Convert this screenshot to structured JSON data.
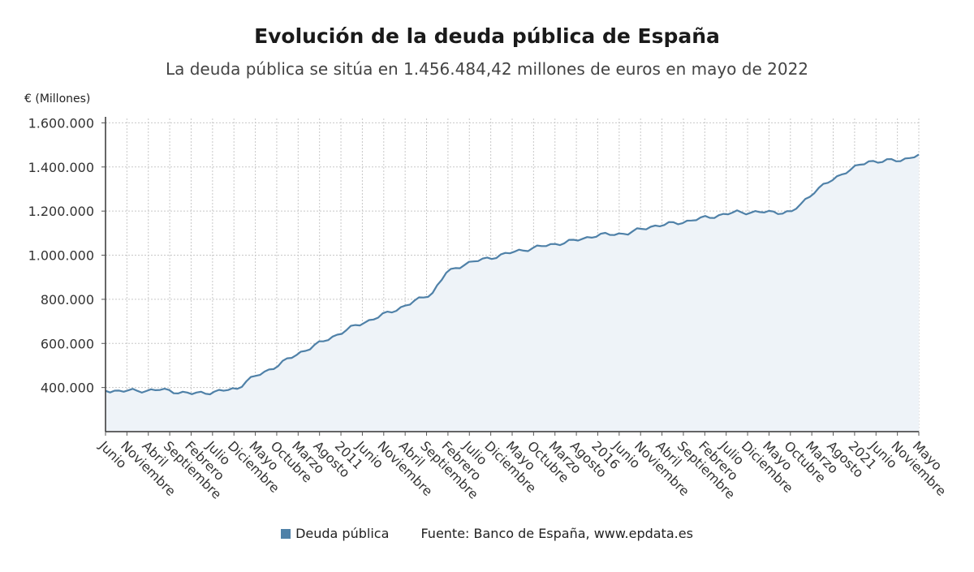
{
  "chart_data": {
    "type": "area",
    "title": "Evolución de la deuda pública de España",
    "subtitle": "La deuda pública se sitúa en 1.456.484,42 millones de euros en mayo de 2022",
    "ylabel": "€ (Millones)",
    "ylim": [
      200000,
      1620000
    ],
    "yticks": [
      400000,
      600000,
      800000,
      1000000,
      1200000,
      1400000,
      1600000
    ],
    "ytick_labels": [
      "400.000",
      "600.000",
      "800.000",
      "1.000.000",
      "1.200.000",
      "1.400.000",
      "1.600.000"
    ],
    "x_start": "2007-06",
    "x_end": "2022-05",
    "xtick_labels": [
      "Junio",
      "Noviembre",
      "Abril",
      "Septiembre",
      "Febrero",
      "Julio",
      "Diciembre",
      "Mayo",
      "Octubre",
      "Marzo",
      "Agosto",
      "2011",
      "Junio",
      "Noviembre",
      "Abril",
      "Septiembre",
      "Febrero",
      "Julio",
      "Diciembre",
      "Mayo",
      "Octubre",
      "Marzo",
      "Agosto",
      "2016",
      "Junio",
      "Noviembre",
      "Abril",
      "Septiembre",
      "Febrero",
      "Julio",
      "Diciembre",
      "Mayo",
      "Octubre",
      "Marzo",
      "Agosto",
      "2021",
      "Junio",
      "Noviembre",
      "Mayo"
    ],
    "grid": true,
    "legend_position": "bottom",
    "series": [
      {
        "name": "Deuda pública",
        "color": "#4f81a8",
        "fill": "#eef3f8",
        "anchors": [
          [
            "2007-06",
            385000
          ],
          [
            "2008-01",
            385000
          ],
          [
            "2008-06",
            390000
          ],
          [
            "2009-01",
            372000
          ],
          [
            "2009-06",
            380000
          ],
          [
            "2009-11",
            395000
          ],
          [
            "2010-01",
            430000
          ],
          [
            "2010-06",
            480000
          ],
          [
            "2011-01",
            560000
          ],
          [
            "2011-06",
            610000
          ],
          [
            "2012-01",
            680000
          ],
          [
            "2012-06",
            720000
          ],
          [
            "2013-01",
            780000
          ],
          [
            "2013-06",
            830000
          ],
          [
            "2013-09",
            920000
          ],
          [
            "2014-01",
            960000
          ],
          [
            "2014-06",
            985000
          ],
          [
            "2015-01",
            1020000
          ],
          [
            "2015-06",
            1040000
          ],
          [
            "2016-01",
            1065000
          ],
          [
            "2016-06",
            1090000
          ],
          [
            "2017-01",
            1100000
          ],
          [
            "2017-06",
            1130000
          ],
          [
            "2018-01",
            1150000
          ],
          [
            "2018-06",
            1170000
          ],
          [
            "2019-01",
            1195000
          ],
          [
            "2019-06",
            1195000
          ],
          [
            "2020-01",
            1195000
          ],
          [
            "2020-03",
            1230000
          ],
          [
            "2020-06",
            1290000
          ],
          [
            "2021-01",
            1380000
          ],
          [
            "2021-06",
            1425000
          ],
          [
            "2022-01",
            1430000
          ],
          [
            "2022-05",
            1456484
          ]
        ]
      }
    ],
    "source": "Fuente: Banco de España, www.epdata.es"
  },
  "legend": {
    "label": "Deuda pública"
  },
  "footer": {
    "source_prefix": "Fuente: Banco de España, ",
    "source_link": "www.epdata.es"
  }
}
